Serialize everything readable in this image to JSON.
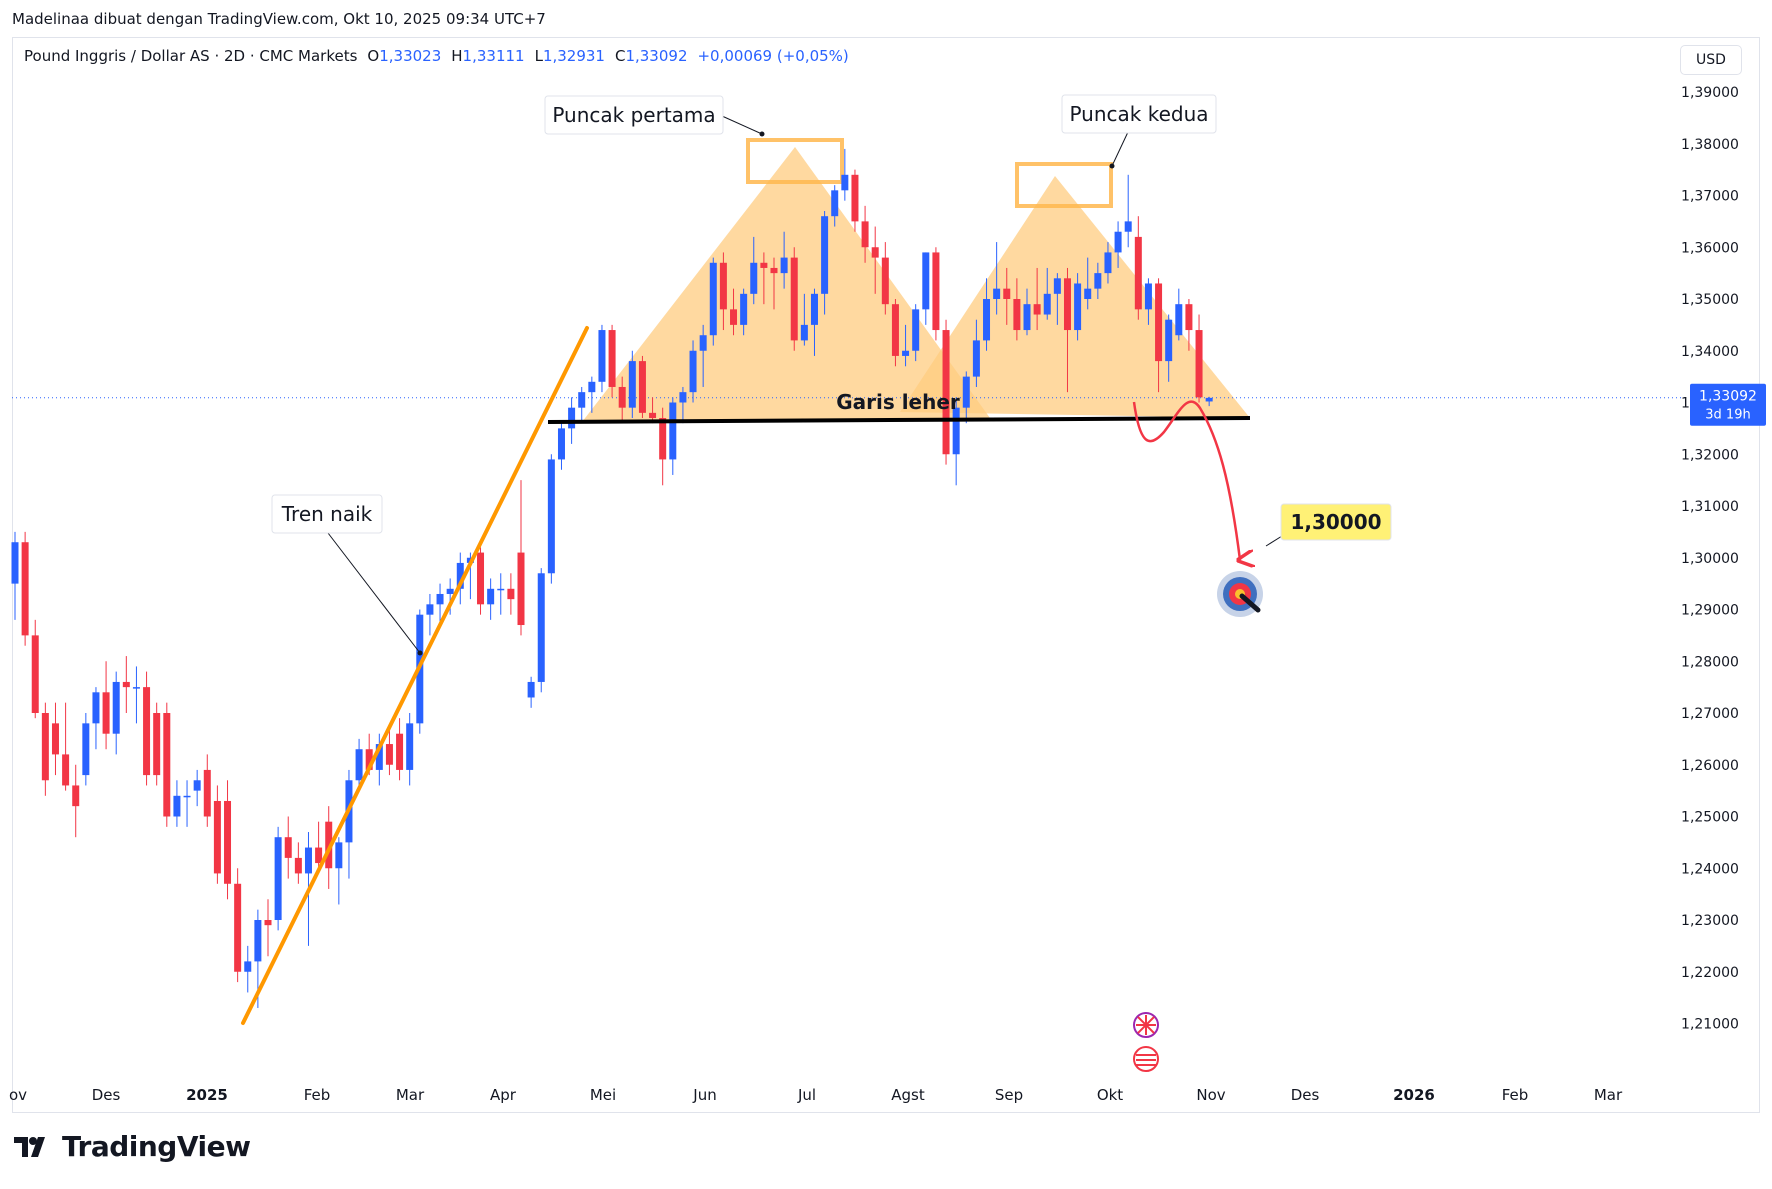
{
  "header": {
    "attribution": "Madelinaa dibuat dengan TradingView.com, Okt 10, 2025 09:34 UTC+7"
  },
  "legend": {
    "symbol": "Pound Inggris / Dollar AS · 2D · CMC Markets",
    "o_label": "O",
    "o_value": "1,33023",
    "h_label": "H",
    "h_value": "1,33111",
    "l_label": "L",
    "l_value": "1,32931",
    "c_label": "C",
    "c_value": "1,33092",
    "change": "+0,00069 (+0,05%)"
  },
  "currency_button": "USD",
  "brand": "TradingView",
  "colors": {
    "up": "#2962ff",
    "down": "#f23645",
    "trendline": "#ff9800",
    "pattern_fill": "#ffcc80",
    "target_label_bg": "#fff176",
    "arrow": "#f23645"
  },
  "chart_data": {
    "type": "candlestick",
    "y_axis_labels": [
      "1,39000",
      "1,38000",
      "1,37000",
      "1,36000",
      "1,35000",
      "1,34000",
      "1,33000",
      "1,32000",
      "1,31000",
      "1,30000",
      "1,29000",
      "1,28000",
      "1,27000",
      "1,26000",
      "1,25000",
      "1,24000",
      "1,23000",
      "1,22000",
      "1,21000"
    ],
    "y_values": [
      1.39,
      1.38,
      1.37,
      1.36,
      1.35,
      1.34,
      1.33,
      1.32,
      1.31,
      1.3,
      1.29,
      1.28,
      1.27,
      1.26,
      1.25,
      1.24,
      1.23,
      1.22,
      1.21
    ],
    "x_axis_labels": [
      "ov",
      "Des",
      "2025",
      "Feb",
      "Mar",
      "Apr",
      "Mei",
      "Jun",
      "Jul",
      "Agst",
      "Sep",
      "Okt",
      "Nov",
      "Des",
      "2026",
      "Feb",
      "Mar"
    ],
    "bold_x_labels": [
      "2025",
      "2026"
    ],
    "last_price": "1,33092",
    "last_price_value": 1.33092,
    "countdown": "3d 19h",
    "annotations": {
      "first_peak": "Puncak pertama",
      "second_peak": "Puncak kedua",
      "uptrend": "Tren naik",
      "neckline": "Garis leher",
      "target": "1,30000",
      "target_value": 1.3
    },
    "neckline_value": 1.3285,
    "candles": [
      {
        "o": 1.295,
        "h": 1.305,
        "l": 1.288,
        "c": 1.303
      },
      {
        "o": 1.303,
        "h": 1.305,
        "l": 1.283,
        "c": 1.285
      },
      {
        "o": 1.285,
        "h": 1.288,
        "l": 1.269,
        "c": 1.27
      },
      {
        "o": 1.27,
        "h": 1.272,
        "l": 1.254,
        "c": 1.257
      },
      {
        "o": 1.268,
        "h": 1.272,
        "l": 1.258,
        "c": 1.262
      },
      {
        "o": 1.262,
        "h": 1.272,
        "l": 1.255,
        "c": 1.256
      },
      {
        "o": 1.256,
        "h": 1.26,
        "l": 1.246,
        "c": 1.252
      },
      {
        "o": 1.258,
        "h": 1.27,
        "l": 1.256,
        "c": 1.268
      },
      {
        "o": 1.268,
        "h": 1.275,
        "l": 1.263,
        "c": 1.274
      },
      {
        "o": 1.274,
        "h": 1.28,
        "l": 1.263,
        "c": 1.266
      },
      {
        "o": 1.266,
        "h": 1.278,
        "l": 1.262,
        "c": 1.276
      },
      {
        "o": 1.276,
        "h": 1.281,
        "l": 1.27,
        "c": 1.275
      },
      {
        "o": 1.275,
        "h": 1.279,
        "l": 1.268,
        "c": 1.275
      },
      {
        "o": 1.275,
        "h": 1.278,
        "l": 1.256,
        "c": 1.258
      },
      {
        "o": 1.27,
        "h": 1.272,
        "l": 1.256,
        "c": 1.258
      },
      {
        "o": 1.27,
        "h": 1.272,
        "l": 1.248,
        "c": 1.25
      },
      {
        "o": 1.25,
        "h": 1.257,
        "l": 1.248,
        "c": 1.254
      },
      {
        "o": 1.254,
        "h": 1.257,
        "l": 1.248,
        "c": 1.254
      },
      {
        "o": 1.255,
        "h": 1.259,
        "l": 1.252,
        "c": 1.257
      },
      {
        "o": 1.259,
        "h": 1.262,
        "l": 1.248,
        "c": 1.25
      },
      {
        "o": 1.253,
        "h": 1.256,
        "l": 1.237,
        "c": 1.239
      },
      {
        "o": 1.253,
        "h": 1.257,
        "l": 1.234,
        "c": 1.237
      },
      {
        "o": 1.237,
        "h": 1.24,
        "l": 1.218,
        "c": 1.22
      },
      {
        "o": 1.22,
        "h": 1.225,
        "l": 1.216,
        "c": 1.222
      },
      {
        "o": 1.222,
        "h": 1.232,
        "l": 1.213,
        "c": 1.23
      },
      {
        "o": 1.23,
        "h": 1.234,
        "l": 1.223,
        "c": 1.229
      },
      {
        "o": 1.23,
        "h": 1.248,
        "l": 1.228,
        "c": 1.246
      },
      {
        "o": 1.246,
        "h": 1.25,
        "l": 1.238,
        "c": 1.242
      },
      {
        "o": 1.242,
        "h": 1.245,
        "l": 1.237,
        "c": 1.239
      },
      {
        "o": 1.239,
        "h": 1.247,
        "l": 1.225,
        "c": 1.244
      },
      {
        "o": 1.244,
        "h": 1.249,
        "l": 1.239,
        "c": 1.241
      },
      {
        "o": 1.249,
        "h": 1.252,
        "l": 1.236,
        "c": 1.24
      },
      {
        "o": 1.24,
        "h": 1.246,
        "l": 1.233,
        "c": 1.245
      },
      {
        "o": 1.245,
        "h": 1.259,
        "l": 1.238,
        "c": 1.257
      },
      {
        "o": 1.257,
        "h": 1.265,
        "l": 1.255,
        "c": 1.263
      },
      {
        "o": 1.263,
        "h": 1.266,
        "l": 1.258,
        "c": 1.259
      },
      {
        "o": 1.259,
        "h": 1.266,
        "l": 1.256,
        "c": 1.264
      },
      {
        "o": 1.264,
        "h": 1.267,
        "l": 1.258,
        "c": 1.26
      },
      {
        "o": 1.266,
        "h": 1.269,
        "l": 1.257,
        "c": 1.259
      },
      {
        "o": 1.259,
        "h": 1.27,
        "l": 1.256,
        "c": 1.268
      },
      {
        "o": 1.268,
        "h": 1.29,
        "l": 1.266,
        "c": 1.289
      },
      {
        "o": 1.289,
        "h": 1.293,
        "l": 1.285,
        "c": 1.291
      },
      {
        "o": 1.291,
        "h": 1.295,
        "l": 1.287,
        "c": 1.293
      },
      {
        "o": 1.293,
        "h": 1.296,
        "l": 1.289,
        "c": 1.294
      },
      {
        "o": 1.294,
        "h": 1.301,
        "l": 1.291,
        "c": 1.299
      },
      {
        "o": 1.299,
        "h": 1.301,
        "l": 1.292,
        "c": 1.3
      },
      {
        "o": 1.301,
        "h": 1.302,
        "l": 1.289,
        "c": 1.291
      },
      {
        "o": 1.291,
        "h": 1.296,
        "l": 1.288,
        "c": 1.294
      },
      {
        "o": 1.294,
        "h": 1.297,
        "l": 1.289,
        "c": 1.294
      },
      {
        "o": 1.294,
        "h": 1.297,
        "l": 1.289,
        "c": 1.292
      },
      {
        "o": 1.301,
        "h": 1.315,
        "l": 1.285,
        "c": 1.287
      },
      {
        "o": 1.273,
        "h": 1.277,
        "l": 1.271,
        "c": 1.276
      },
      {
        "o": 1.276,
        "h": 1.298,
        "l": 1.274,
        "c": 1.297
      },
      {
        "o": 1.297,
        "h": 1.32,
        "l": 1.295,
        "c": 1.319
      },
      {
        "o": 1.319,
        "h": 1.326,
        "l": 1.317,
        "c": 1.325
      },
      {
        "o": 1.325,
        "h": 1.331,
        "l": 1.322,
        "c": 1.329
      },
      {
        "o": 1.329,
        "h": 1.333,
        "l": 1.326,
        "c": 1.332
      },
      {
        "o": 1.332,
        "h": 1.335,
        "l": 1.328,
        "c": 1.334
      },
      {
        "o": 1.334,
        "h": 1.345,
        "l": 1.332,
        "c": 1.344
      },
      {
        "o": 1.344,
        "h": 1.345,
        "l": 1.331,
        "c": 1.333
      },
      {
        "o": 1.333,
        "h": 1.335,
        "l": 1.326,
        "c": 1.329
      },
      {
        "o": 1.329,
        "h": 1.34,
        "l": 1.327,
        "c": 1.338
      },
      {
        "o": 1.338,
        "h": 1.339,
        "l": 1.327,
        "c": 1.328
      },
      {
        "o": 1.328,
        "h": 1.331,
        "l": 1.326,
        "c": 1.327
      },
      {
        "o": 1.327,
        "h": 1.329,
        "l": 1.314,
        "c": 1.319
      },
      {
        "o": 1.319,
        "h": 1.331,
        "l": 1.316,
        "c": 1.33
      },
      {
        "o": 1.33,
        "h": 1.333,
        "l": 1.326,
        "c": 1.332
      },
      {
        "o": 1.332,
        "h": 1.342,
        "l": 1.33,
        "c": 1.34
      },
      {
        "o": 1.34,
        "h": 1.345,
        "l": 1.333,
        "c": 1.343
      },
      {
        "o": 1.343,
        "h": 1.358,
        "l": 1.341,
        "c": 1.357
      },
      {
        "o": 1.357,
        "h": 1.359,
        "l": 1.344,
        "c": 1.348
      },
      {
        "o": 1.348,
        "h": 1.352,
        "l": 1.343,
        "c": 1.345
      },
      {
        "o": 1.345,
        "h": 1.352,
        "l": 1.343,
        "c": 1.351
      },
      {
        "o": 1.351,
        "h": 1.362,
        "l": 1.349,
        "c": 1.357
      },
      {
        "o": 1.357,
        "h": 1.359,
        "l": 1.349,
        "c": 1.356
      },
      {
        "o": 1.356,
        "h": 1.358,
        "l": 1.348,
        "c": 1.355
      },
      {
        "o": 1.355,
        "h": 1.363,
        "l": 1.352,
        "c": 1.358
      },
      {
        "o": 1.358,
        "h": 1.36,
        "l": 1.34,
        "c": 1.342
      },
      {
        "o": 1.342,
        "h": 1.351,
        "l": 1.341,
        "c": 1.345
      },
      {
        "o": 1.345,
        "h": 1.352,
        "l": 1.339,
        "c": 1.351
      },
      {
        "o": 1.351,
        "h": 1.367,
        "l": 1.347,
        "c": 1.366
      },
      {
        "o": 1.366,
        "h": 1.372,
        "l": 1.364,
        "c": 1.371
      },
      {
        "o": 1.371,
        "h": 1.379,
        "l": 1.369,
        "c": 1.374
      },
      {
        "o": 1.374,
        "h": 1.375,
        "l": 1.363,
        "c": 1.365
      },
      {
        "o": 1.365,
        "h": 1.368,
        "l": 1.357,
        "c": 1.36
      },
      {
        "o": 1.36,
        "h": 1.364,
        "l": 1.351,
        "c": 1.358
      },
      {
        "o": 1.358,
        "h": 1.361,
        "l": 1.347,
        "c": 1.349
      },
      {
        "o": 1.349,
        "h": 1.35,
        "l": 1.337,
        "c": 1.339
      },
      {
        "o": 1.339,
        "h": 1.345,
        "l": 1.337,
        "c": 1.34
      },
      {
        "o": 1.34,
        "h": 1.349,
        "l": 1.338,
        "c": 1.348
      },
      {
        "o": 1.348,
        "h": 1.359,
        "l": 1.345,
        "c": 1.359
      },
      {
        "o": 1.359,
        "h": 1.36,
        "l": 1.342,
        "c": 1.344
      },
      {
        "o": 1.344,
        "h": 1.346,
        "l": 1.318,
        "c": 1.32
      },
      {
        "o": 1.32,
        "h": 1.331,
        "l": 1.314,
        "c": 1.329
      },
      {
        "o": 1.329,
        "h": 1.336,
        "l": 1.326,
        "c": 1.335
      },
      {
        "o": 1.335,
        "h": 1.346,
        "l": 1.333,
        "c": 1.342
      },
      {
        "o": 1.342,
        "h": 1.354,
        "l": 1.34,
        "c": 1.35
      },
      {
        "o": 1.35,
        "h": 1.361,
        "l": 1.347,
        "c": 1.352
      },
      {
        "o": 1.352,
        "h": 1.356,
        "l": 1.345,
        "c": 1.35
      },
      {
        "o": 1.35,
        "h": 1.354,
        "l": 1.342,
        "c": 1.344
      },
      {
        "o": 1.344,
        "h": 1.352,
        "l": 1.343,
        "c": 1.349
      },
      {
        "o": 1.349,
        "h": 1.356,
        "l": 1.344,
        "c": 1.347
      },
      {
        "o": 1.347,
        "h": 1.356,
        "l": 1.346,
        "c": 1.351
      },
      {
        "o": 1.351,
        "h": 1.355,
        "l": 1.345,
        "c": 1.354
      },
      {
        "o": 1.354,
        "h": 1.356,
        "l": 1.332,
        "c": 1.344
      },
      {
        "o": 1.344,
        "h": 1.355,
        "l": 1.342,
        "c": 1.353
      },
      {
        "o": 1.35,
        "h": 1.358,
        "l": 1.348,
        "c": 1.352
      },
      {
        "o": 1.352,
        "h": 1.357,
        "l": 1.35,
        "c": 1.355
      },
      {
        "o": 1.355,
        "h": 1.361,
        "l": 1.353,
        "c": 1.359
      },
      {
        "o": 1.359,
        "h": 1.365,
        "l": 1.356,
        "c": 1.363
      },
      {
        "o": 1.363,
        "h": 1.374,
        "l": 1.36,
        "c": 1.365
      },
      {
        "o": 1.362,
        "h": 1.366,
        "l": 1.346,
        "c": 1.348
      },
      {
        "o": 1.348,
        "h": 1.354,
        "l": 1.345,
        "c": 1.353
      },
      {
        "o": 1.353,
        "h": 1.354,
        "l": 1.332,
        "c": 1.338
      },
      {
        "o": 1.338,
        "h": 1.347,
        "l": 1.334,
        "c": 1.346
      },
      {
        "o": 1.343,
        "h": 1.352,
        "l": 1.342,
        "c": 1.349
      },
      {
        "o": 1.349,
        "h": 1.35,
        "l": 1.34,
        "c": 1.344
      },
      {
        "o": 1.344,
        "h": 1.347,
        "l": 1.33,
        "c": 1.331
      },
      {
        "o": 1.3302,
        "h": 1.3311,
        "l": 1.3293,
        "c": 1.3309
      }
    ]
  }
}
